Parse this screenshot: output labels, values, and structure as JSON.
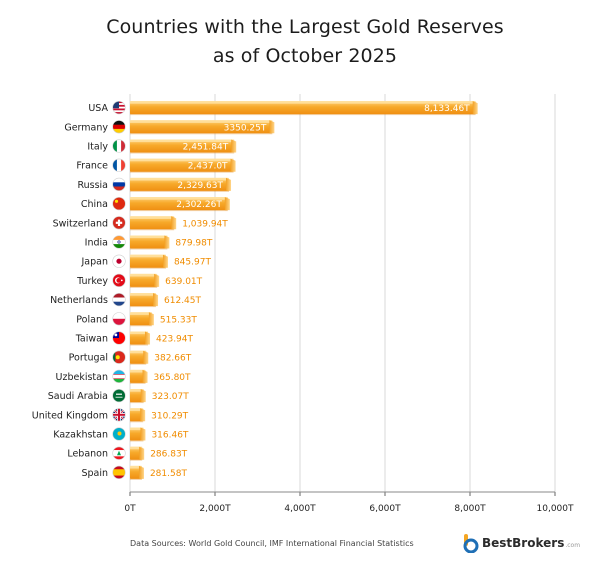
{
  "title_line1": "Countries with the Largest Gold Reserves",
  "title_line2": "as of October 2025",
  "chart_data": {
    "type": "bar",
    "orientation": "horizontal",
    "categories": [
      "USA",
      "Germany",
      "Italy",
      "France",
      "Russia",
      "China",
      "Switzerland",
      "India",
      "Japan",
      "Turkey",
      "Netherlands",
      "Poland",
      "Taiwan",
      "Portugal",
      "Uzbekistan",
      "Saudi Arabia",
      "United Kingdom",
      "Kazakhstan",
      "Lebanon",
      "Spain"
    ],
    "values": [
      8133.46,
      3350.25,
      2451.84,
      2437.0,
      2329.63,
      2302.26,
      1039.94,
      879.98,
      845.97,
      639.01,
      612.45,
      515.33,
      423.94,
      382.66,
      365.8,
      323.07,
      310.29,
      316.46,
      286.83,
      281.58
    ],
    "value_labels": [
      "8,133.46T",
      "3350.25T",
      "2,451.84T",
      "2,437.0T",
      "2,329.63T",
      "2,302.26T",
      "1,039.94T",
      "879.98T",
      "845.97T",
      "639.01T",
      "612.45T",
      "515.33T",
      "423.94T",
      "382.66T",
      "365.80T",
      "323.07T",
      "310.29T",
      "316.46T",
      "286.83T",
      "281.58T"
    ],
    "flag_icons": [
      "usa-flag-icon",
      "germany-flag-icon",
      "italy-flag-icon",
      "france-flag-icon",
      "russia-flag-icon",
      "china-flag-icon",
      "switzerland-flag-icon",
      "india-flag-icon",
      "japan-flag-icon",
      "turkey-flag-icon",
      "netherlands-flag-icon",
      "poland-flag-icon",
      "taiwan-flag-icon",
      "portugal-flag-icon",
      "uzbekistan-flag-icon",
      "saudi-arabia-flag-icon",
      "united-kingdom-flag-icon",
      "kazakhstan-flag-icon",
      "lebanon-flag-icon",
      "spain-flag-icon"
    ],
    "xlim": [
      0,
      10000
    ],
    "x_ticks": [
      0,
      2000,
      4000,
      6000,
      8000,
      10000
    ],
    "x_tick_labels": [
      "0T",
      "2,000T",
      "4,000T",
      "6,000T",
      "8,000T",
      "10,000T"
    ],
    "grid": true,
    "bar_color": "#f5a623",
    "title": "Countries with the Largest Gold Reserves as of October 2025"
  },
  "footer": {
    "source": "Data Sources: World Gold Council, IMF International Financial Statistics",
    "brand_name": "BestBrokers",
    "brand_tld": ".com"
  }
}
